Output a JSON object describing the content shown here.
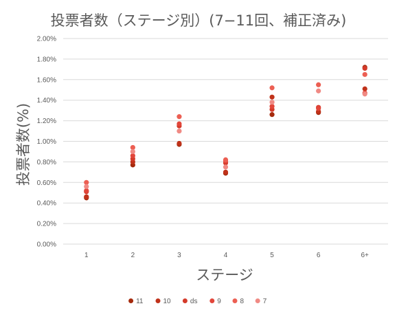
{
  "chart_data": {
    "type": "scatter",
    "title": "投票者数（ステージ別）(7−11回、補正済み)",
    "xlabel": "ステージ",
    "ylabel": "投票者数(%)",
    "categories": [
      "1",
      "2",
      "3",
      "4",
      "5",
      "6",
      "6+"
    ],
    "ylim": [
      0,
      0.02
    ],
    "yticks": [
      "0.00%",
      "0.20%",
      "0.40%",
      "0.60%",
      "0.80%",
      "1.00%",
      "1.20%",
      "1.40%",
      "1.60%",
      "1.80%",
      "2.00%"
    ],
    "grid": true,
    "legend_position": "bottom",
    "series": [
      {
        "name": "11",
        "color": "#a52a0d",
        "values": [
          0.0045,
          0.0077,
          0.0097,
          0.0069,
          0.0126,
          0.0128,
          0.0172
        ]
      },
      {
        "name": "10",
        "color": "#c0321a",
        "values": [
          0.0046,
          0.008,
          0.0098,
          0.007,
          0.0143,
          0.0129,
          0.0151
        ]
      },
      {
        "name": "ds",
        "color": "#d43a2a",
        "values": [
          0.0051,
          0.0083,
          0.0115,
          0.0079,
          0.0131,
          0.0133,
          0.0171
        ]
      },
      {
        "name": "9",
        "color": "#e2463a",
        "values": [
          0.0052,
          0.0086,
          0.0117,
          0.0081,
          0.0134,
          0.0132,
          0.0147
        ]
      },
      {
        "name": "8",
        "color": "#ec5f53",
        "values": [
          0.006,
          0.0094,
          0.0124,
          0.0082,
          0.0152,
          0.0155,
          0.0165
        ]
      },
      {
        "name": "7",
        "color": "#f08a84",
        "values": [
          0.0056,
          0.009,
          0.011,
          0.0075,
          0.0138,
          0.0149,
          0.0146
        ]
      }
    ]
  }
}
